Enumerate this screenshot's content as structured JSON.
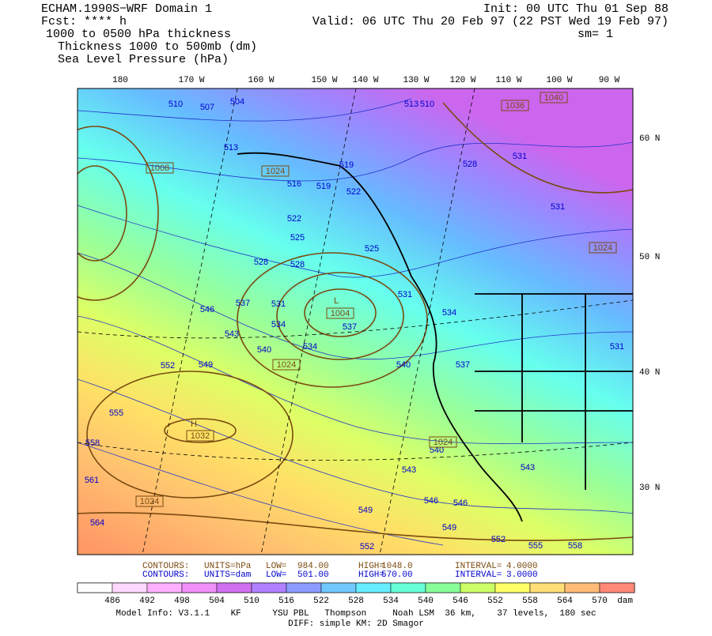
{
  "header": {
    "model": "ECHAM.1990S−WRF Domain 1",
    "fcst": "Fcst: **** h",
    "init": "Init: 00 UTC Thu 01 Sep 88",
    "valid": "Valid: 06 UTC Thu 20 Feb 97 (22 PST Wed 19 Feb 97)",
    "field": "1000 to 0500 hPa thickness",
    "smooth": "sm= 1",
    "legend_thickness": "Thickness 1000 to 500mb (dm)",
    "legend_pressure": "Sea Level Pressure (hPa)"
  },
  "longitude_labels": [
    "180",
    "170 W",
    "160 W",
    "150 W",
    "140 W",
    "130 W",
    "120 W",
    "110 W",
    "100 W",
    "90 W"
  ],
  "latitude_labels": [
    "60 N",
    "50 N",
    "40 N",
    "30 N"
  ],
  "thickness_labels": [
    "510",
    "507",
    "504",
    "513",
    "516",
    "519",
    "522",
    "519",
    "522",
    "525",
    "528",
    "528",
    "525",
    "531",
    "537",
    "531",
    "534",
    "537",
    "534",
    "540",
    "543",
    "546",
    "549",
    "552",
    "555",
    "558",
    "561",
    "564",
    "540",
    "537",
    "534",
    "528",
    "531",
    "531",
    "531",
    "540",
    "543",
    "543",
    "546",
    "546",
    "549",
    "549",
    "552",
    "555",
    "558",
    "552",
    "513",
    "510"
  ],
  "pressure_labels": [
    "1008",
    "1024",
    "1004",
    "1024",
    "1032",
    "1024",
    "1024",
    "1036",
    "1040",
    "1024"
  ],
  "pressure_centers": [
    "L",
    "H"
  ],
  "contour_info": [
    [
      "CONTOURS:",
      "UNITS=hPa",
      "LOW=",
      "984.00",
      "HIGH=",
      "1048.0",
      "INTERVAL=",
      "4.0000"
    ],
    [
      "CONTOURS:",
      "UNITS=dam",
      "LOW=",
      "501.00",
      "HIGH=",
      "570.00",
      "INTERVAL=",
      "3.0000"
    ]
  ],
  "colorbar": {
    "labels": [
      "486",
      "492",
      "498",
      "504",
      "510",
      "516",
      "522",
      "528",
      "534",
      "540",
      "546",
      "552",
      "558",
      "564",
      "570"
    ],
    "unit": "dam",
    "colors": [
      "#ffffff",
      "#ffd8ff",
      "#ffb0ff",
      "#f090f8",
      "#d070f0",
      "#b080ff",
      "#8a9cff",
      "#70c8ff",
      "#66eeff",
      "#66ffd8",
      "#88ff99",
      "#ccff66",
      "#ffff66",
      "#ffdd77",
      "#ffbb77",
      "#ff8877"
    ]
  },
  "footer": [
    "Model Info: V3.1.1    KF      YSU PBL   Thompson     Noah LSM  36 km,    37 levels,  180 sec",
    "DIFF: simple KM: 2D Smagor"
  ]
}
